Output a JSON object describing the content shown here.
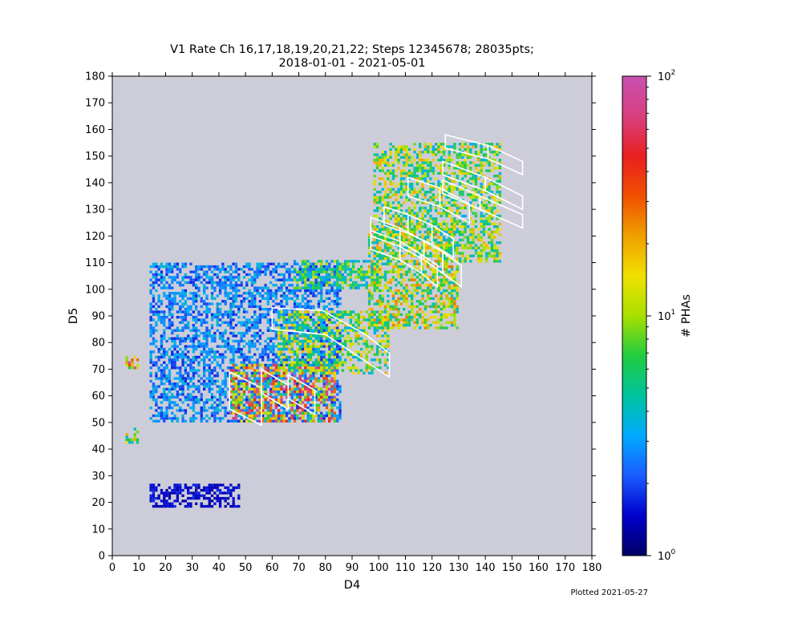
{
  "chart_data": {
    "type": "heatmap",
    "title_line1": "V1 Rate Ch 16,17,18,19,20,21,22; Steps 12345678; 28035pts;",
    "title_line2": "2018-01-01 - 2021-05-01",
    "xlabel": "D4",
    "ylabel": "D5",
    "xlim": [
      0,
      180
    ],
    "ylim": [
      0,
      180
    ],
    "xticks": [
      0,
      10,
      20,
      30,
      40,
      50,
      60,
      70,
      80,
      90,
      100,
      110,
      120,
      130,
      140,
      150,
      160,
      170,
      180
    ],
    "yticks": [
      0,
      10,
      20,
      30,
      40,
      50,
      60,
      70,
      80,
      90,
      100,
      110,
      120,
      130,
      140,
      150,
      160,
      170,
      180
    ],
    "background_color": "#cdcdd9",
    "colorbar": {
      "label": "# PHAs",
      "scale": "log",
      "range": [
        1,
        100
      ],
      "tick_base": "10",
      "tick_exponents": [
        "0",
        "1",
        "2"
      ],
      "colormap": [
        "#000066",
        "#0000cc",
        "#1a5cff",
        "#00aaff",
        "#00c3a0",
        "#20cc40",
        "#a8e000",
        "#f0e000",
        "#f0a000",
        "#f05000",
        "#e82020",
        "#d84080",
        "#c850b0"
      ]
    },
    "footer_note": "Plotted 2021-05-27",
    "density_regions": [
      {
        "name": "low-D4 block",
        "x": [
          14,
          86
        ],
        "y": [
          50,
          110
        ],
        "level": 0.25
      },
      {
        "name": "left band",
        "x": [
          44,
          84
        ],
        "y": [
          50,
          72
        ],
        "level": 0.85
      },
      {
        "name": "middle band",
        "x": [
          62,
          104
        ],
        "y": [
          68,
          92
        ],
        "level": 0.55
      },
      {
        "name": "upper triangle",
        "x": [
          68,
          100
        ],
        "y": [
          100,
          111
        ],
        "level": 0.45
      },
      {
        "name": "lower-right lobe",
        "x": [
          96,
          130
        ],
        "y": [
          85,
          125
        ],
        "level": 0.6
      },
      {
        "name": "upper streaks",
        "x": [
          98,
          146
        ],
        "y": [
          110,
          155
        ],
        "level": 0.55
      },
      {
        "name": "left spot upper",
        "x": [
          5,
          10
        ],
        "y": [
          70,
          75
        ],
        "level": 0.9
      },
      {
        "name": "left spot lower",
        "x": [
          5,
          10
        ],
        "y": [
          42,
          48
        ],
        "level": 0.55
      },
      {
        "name": "low scatter",
        "x": [
          14,
          48
        ],
        "y": [
          18,
          27
        ],
        "level": 0.1
      }
    ],
    "polygons": [
      {
        "points": [
          [
            44,
            55
          ],
          [
            44,
            69
          ],
          [
            56,
            63
          ],
          [
            56,
            49
          ]
        ]
      },
      {
        "points": [
          [
            56,
            61
          ],
          [
            56,
            70
          ],
          [
            66,
            64
          ],
          [
            66,
            55
          ]
        ]
      },
      {
        "points": [
          [
            66,
            59
          ],
          [
            66,
            68
          ],
          [
            76,
            62
          ],
          [
            76,
            53
          ]
        ]
      },
      {
        "points": [
          [
            60,
            85
          ],
          [
            60,
            93
          ],
          [
            79,
            92
          ],
          [
            95,
            83
          ],
          [
            104,
            76
          ],
          [
            104,
            67
          ],
          [
            95,
            73
          ],
          [
            80,
            83
          ]
        ]
      },
      {
        "points": [
          [
            97,
            115
          ],
          [
            97,
            122
          ],
          [
            108,
            118
          ],
          [
            108,
            111
          ]
        ]
      },
      {
        "points": [
          [
            108,
            111
          ],
          [
            108,
            118
          ],
          [
            116,
            113
          ],
          [
            116,
            106
          ]
        ]
      },
      {
        "points": [
          [
            116,
            106
          ],
          [
            116,
            113
          ],
          [
            122,
            109
          ],
          [
            122,
            101
          ]
        ]
      },
      {
        "points": [
          [
            97,
            120
          ],
          [
            97,
            127
          ],
          [
            108,
            123
          ],
          [
            108,
            116
          ]
        ]
      },
      {
        "points": [
          [
            108,
            116
          ],
          [
            108,
            123
          ],
          [
            117,
            118
          ],
          [
            117,
            111
          ]
        ]
      },
      {
        "points": [
          [
            117,
            111
          ],
          [
            117,
            118
          ],
          [
            124,
            114
          ],
          [
            124,
            106
          ]
        ]
      },
      {
        "points": [
          [
            124,
            106
          ],
          [
            124,
            114
          ],
          [
            131,
            109
          ],
          [
            131,
            101
          ]
        ]
      },
      {
        "points": [
          [
            102,
            124
          ],
          [
            102,
            131
          ],
          [
            111,
            128
          ],
          [
            111,
            121
          ]
        ]
      },
      {
        "points": [
          [
            111,
            121
          ],
          [
            111,
            128
          ],
          [
            120,
            124
          ],
          [
            120,
            117
          ]
        ]
      },
      {
        "points": [
          [
            120,
            117
          ],
          [
            120,
            124
          ],
          [
            128,
            119
          ],
          [
            128,
            112
          ]
        ]
      },
      {
        "points": [
          [
            111,
            135
          ],
          [
            111,
            142
          ],
          [
            123,
            138
          ],
          [
            123,
            131
          ]
        ]
      },
      {
        "points": [
          [
            123,
            131
          ],
          [
            123,
            138
          ],
          [
            134,
            132
          ],
          [
            134,
            125
          ]
        ]
      },
      {
        "points": [
          [
            124,
            143
          ],
          [
            124,
            148
          ],
          [
            140,
            142
          ],
          [
            140,
            137
          ]
        ]
      },
      {
        "points": [
          [
            140,
            137
          ],
          [
            140,
            142
          ],
          [
            154,
            135
          ],
          [
            154,
            130
          ]
        ]
      },
      {
        "points": [
          [
            124,
            136
          ],
          [
            124,
            141
          ],
          [
            138,
            135
          ],
          [
            138,
            130
          ]
        ]
      },
      {
        "points": [
          [
            138,
            130
          ],
          [
            138,
            135
          ],
          [
            154,
            128
          ],
          [
            154,
            123
          ]
        ]
      },
      {
        "points": [
          [
            125,
            153
          ],
          [
            125,
            158
          ],
          [
            141,
            154
          ],
          [
            141,
            149
          ]
        ]
      },
      {
        "points": [
          [
            141,
            149
          ],
          [
            141,
            154
          ],
          [
            154,
            148
          ],
          [
            154,
            143
          ]
        ]
      }
    ]
  }
}
